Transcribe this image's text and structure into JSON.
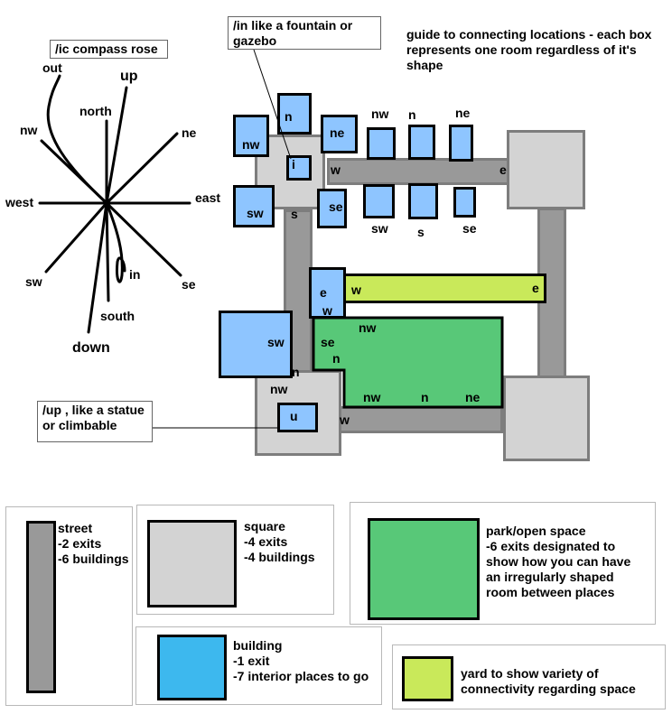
{
  "notes": {
    "compass": "/ic compass rose",
    "fountain": "/in like a fountain or gazebo",
    "statue": "/up , like a statue or climbable",
    "guide": "guide to connecting locations - each box represents one room regardless of it's shape"
  },
  "compass": {
    "out": "out",
    "up": "up",
    "north": "north",
    "nw": "nw",
    "ne": "ne",
    "west": "west",
    "east": "east",
    "sw": "sw",
    "se": "se",
    "in": "in",
    "south": "south",
    "down": "down"
  },
  "map": {
    "top_square": {
      "n": "n",
      "nw": "nw",
      "ne": "ne",
      "i": "i",
      "w": "w",
      "sw": "sw",
      "s": "s",
      "se": "se"
    },
    "top_street": {
      "nw": "nw",
      "n": "n",
      "ne": "ne",
      "e": "e",
      "sw": "sw",
      "s": "s",
      "se": "se"
    },
    "yard": {
      "w": "w",
      "e": "e"
    },
    "park": {
      "e": "e",
      "w": "w",
      "nw_top": "nw",
      "se": "se",
      "n_left": "n",
      "nw_bottom": "nw",
      "n_bottom": "n",
      "ne_bottom": "ne"
    },
    "left_building": {
      "sw": "sw"
    },
    "bottom_square": {
      "n": "n",
      "nw": "nw",
      "u": "u",
      "w": "w"
    }
  },
  "legend": {
    "street": "street\n-2 exits\n-6 buildings",
    "square": "square\n-4 exits\n-4 buildings",
    "park": "park/open space\n-6 exits designated to\nshow how you can have\nan irregularly shaped\nroom between places",
    "building": "building\n-1 exit\n-7 interior places to go",
    "yard": "yard to show variety of\nconnectivity regarding space"
  },
  "colors": {
    "street": "#999999",
    "square": "#d3d3d3",
    "building_map": "#8ec5ff",
    "building_legend": "#3db8ee",
    "park": "#58c878",
    "yard": "#c9e95a"
  }
}
